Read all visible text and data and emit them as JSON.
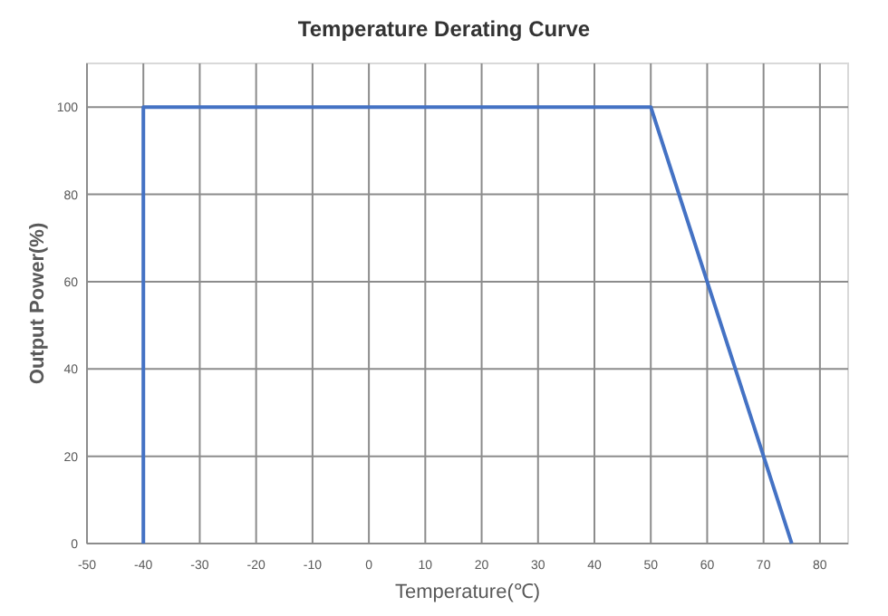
{
  "chart_data": {
    "type": "line",
    "title": "Temperature Derating Curve",
    "xlabel": "Temperature(℃)",
    "ylabel": "Output Power(%)",
    "x": [
      -40,
      -40,
      50,
      75
    ],
    "series": [
      {
        "color": "#4472c4",
        "values": [
          0,
          100,
          100,
          0
        ]
      }
    ],
    "xlim": [
      -50,
      85
    ],
    "xticks": [
      -50,
      -40,
      -30,
      -20,
      -10,
      0,
      10,
      20,
      30,
      40,
      50,
      60,
      70,
      80
    ],
    "ylim": [
      0,
      110
    ],
    "yticks": [
      0,
      20,
      40,
      60,
      80,
      100
    ],
    "grid": true,
    "marker": "none",
    "line_style": "solid"
  }
}
